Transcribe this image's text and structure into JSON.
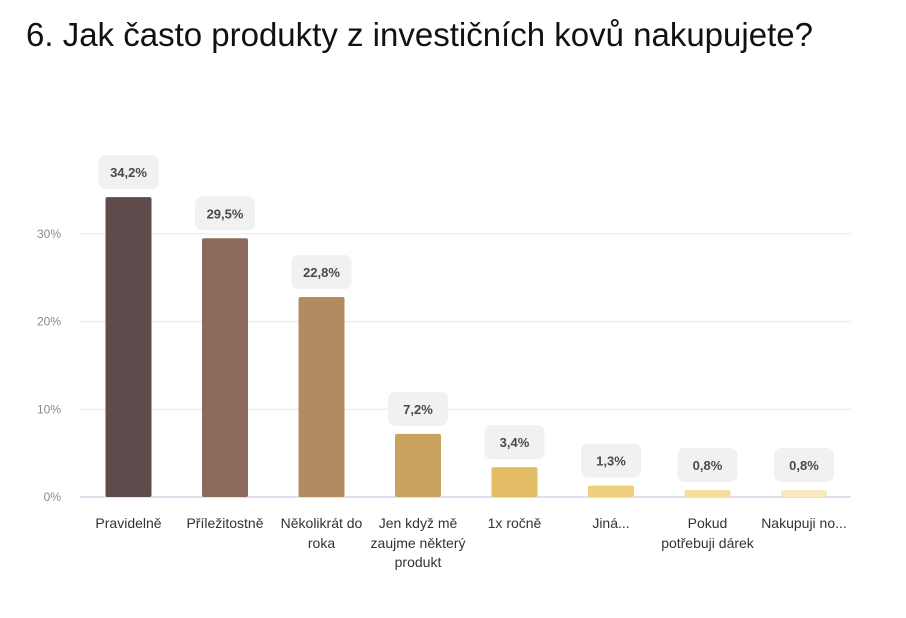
{
  "chart_data": {
    "type": "bar",
    "title": "6. Jak často produkty z investičních kovů nakupujete?",
    "categories": [
      "Pravidelně",
      "Příležitostně",
      "Několikrát do roka",
      "Jen když mě zaujme některý produkt",
      "1x ročně",
      "Jiná...",
      "Pokud potřebuji dárek",
      "Nakupuji no..."
    ],
    "values": [
      34.2,
      29.5,
      22.8,
      7.2,
      3.4,
      1.3,
      0.8,
      0.8
    ],
    "value_labels": [
      "34,2%",
      "29,5%",
      "22,8%",
      "7,2%",
      "3,4%",
      "1,3%",
      "0,8%",
      "0,8%"
    ],
    "bar_colors": [
      "#5e4c4c",
      "#8d6a5b",
      "#b38b63",
      "#caa25f",
      "#e3bd66",
      "#efcf7a",
      "#f5df9c",
      "#f8ebc4"
    ],
    "yticks": [
      0,
      10,
      20,
      30
    ],
    "ytick_labels": [
      "0%",
      "10%",
      "20%",
      "30%"
    ],
    "ylim": [
      0,
      37
    ],
    "grid": true,
    "legend": "none"
  }
}
